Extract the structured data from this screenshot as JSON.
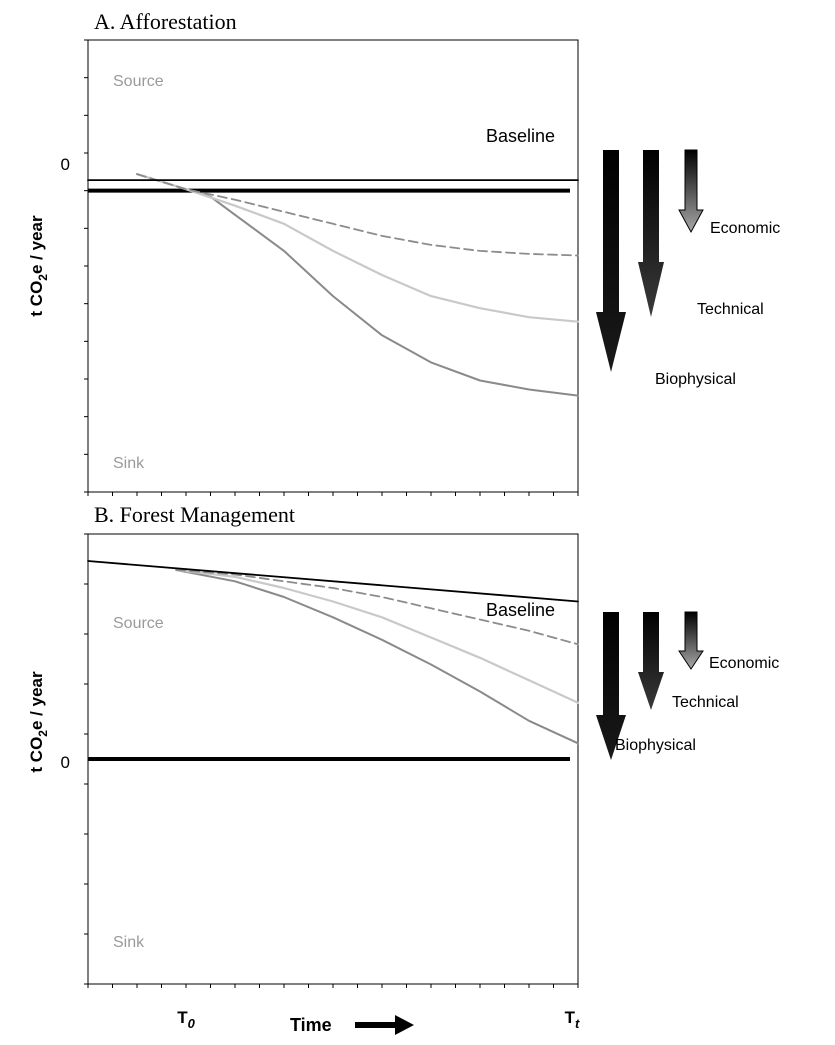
{
  "chart_data": [
    {
      "type": "line",
      "title": "A. Afforestation",
      "ylabel": "t CO2e / year",
      "ylabel_main": "t CO",
      "ylabel_sub": "2",
      "ylabel_rest": "e / year",
      "zero_label": "0",
      "region_labels": {
        "top": "Source",
        "bottom": "Sink"
      },
      "xlim": [
        0,
        100
      ],
      "ylim": [
        -100,
        50
      ],
      "x_minor_ticks": 20,
      "y_minor_ticks": 12,
      "series": [
        {
          "name": "Baseline",
          "style": "solid-black",
          "x": [
            0,
            100
          ],
          "y": [
            3.5,
            3.5
          ]
        },
        {
          "name": "Economic",
          "style": "dashed-gray",
          "x": [
            10,
            20,
            30,
            40,
            50,
            60,
            70,
            80,
            90,
            100
          ],
          "y": [
            5.5,
            0.5,
            -3,
            -7,
            -11,
            -15,
            -18,
            -20,
            -21,
            -21.5
          ]
        },
        {
          "name": "Technical",
          "style": "light-gray",
          "x": [
            10,
            20,
            30,
            40,
            50,
            60,
            70,
            80,
            90,
            100
          ],
          "y": [
            5.5,
            0.5,
            -5,
            -11,
            -20,
            -28,
            -35,
            -39,
            -42,
            -43.5
          ]
        },
        {
          "name": "Biophysical",
          "style": "gray",
          "x": [
            10,
            20,
            25,
            30,
            40,
            50,
            60,
            70,
            80,
            90,
            100
          ],
          "y": [
            5.5,
            0.5,
            -2,
            -8,
            -20,
            -35,
            -48,
            -57,
            -63,
            -66,
            -68
          ]
        }
      ],
      "arrow_labels": [
        "Economic",
        "Technical",
        "Biophysical"
      ]
    },
    {
      "type": "line",
      "title": "B. Forest Management",
      "ylabel": "t CO2e / year",
      "ylabel_main": "t CO",
      "ylabel_sub": "2",
      "ylabel_rest": "e / year",
      "zero_label": "0",
      "region_labels": {
        "top": "Source",
        "bottom": "Sink"
      },
      "xlim": [
        0,
        100
      ],
      "ylim": [
        -100,
        100
      ],
      "x_minor_ticks": 20,
      "y_minor_ticks": 9,
      "series": [
        {
          "name": "Baseline",
          "style": "solid-black",
          "x": [
            0,
            100
          ],
          "y": [
            88,
            70
          ]
        },
        {
          "name": "Economic",
          "style": "dashed-gray",
          "x": [
            18,
            30,
            40,
            50,
            60,
            70,
            80,
            90,
            100
          ],
          "y": [
            84,
            82,
            79,
            76,
            72,
            67,
            62,
            57,
            51
          ]
        },
        {
          "name": "Technical",
          "style": "light-gray",
          "x": [
            18,
            30,
            40,
            50,
            60,
            70,
            80,
            90,
            100
          ],
          "y": [
            84,
            81,
            76,
            70,
            63,
            54,
            45,
            35,
            25
          ]
        },
        {
          "name": "Biophysical",
          "style": "gray",
          "x": [
            18,
            30,
            40,
            50,
            60,
            70,
            80,
            90,
            100
          ],
          "y": [
            84,
            79,
            72,
            63,
            53,
            42,
            30,
            17,
            7
          ]
        }
      ],
      "arrow_labels": [
        "Economic",
        "Technical",
        "Biophysical"
      ],
      "xlabel": "Time",
      "x_labels": [
        {
          "main": "T",
          "sub": "0",
          "x": 20
        },
        {
          "main": "T",
          "sub": "t",
          "x": 100
        }
      ]
    }
  ],
  "colors": {
    "baseline": "#000000",
    "economic": "#8c8c8c",
    "technical": "#c9c9c9",
    "biophysical": "#8a8a8a",
    "region_label": "#9a9a9a",
    "arrow": "#1a1a1a"
  }
}
